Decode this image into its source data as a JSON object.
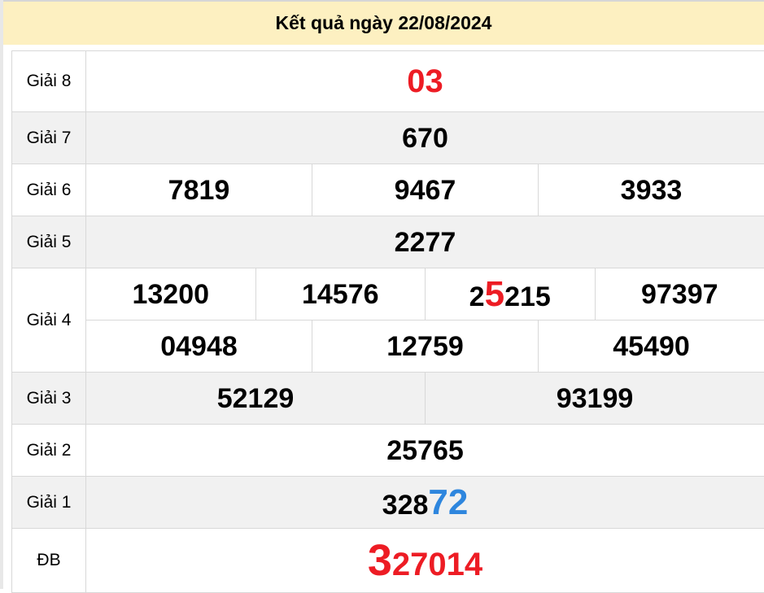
{
  "header": {
    "title": "Kết quả ngày 22/08/2024",
    "bg_color": "#fdf0c1"
  },
  "colors": {
    "red": "#ed1c24",
    "blue": "#2e86de",
    "row_gray": "#f1f1f1",
    "row_white": "#ffffff",
    "border": "#d8d8d8"
  },
  "table": {
    "rows": [
      {
        "name": "giai-8",
        "label": "Giải 8",
        "shade": "white",
        "size": "large",
        "lines": [
          [
            [
              {
                "text": "03",
                "color": "red"
              }
            ]
          ]
        ]
      },
      {
        "name": "giai-7",
        "label": "Giải 7",
        "shade": "gray",
        "size": "normal",
        "lines": [
          [
            [
              {
                "text": "670",
                "color": "black"
              }
            ]
          ]
        ]
      },
      {
        "name": "giai-6",
        "label": "Giải 6",
        "shade": "white",
        "size": "normal",
        "lines": [
          [
            [
              {
                "text": "7819",
                "color": "black"
              }
            ],
            [
              {
                "text": "9467",
                "color": "black"
              }
            ],
            [
              {
                "text": "3933",
                "color": "black"
              }
            ]
          ]
        ]
      },
      {
        "name": "giai-5",
        "label": "Giải 5",
        "shade": "gray",
        "size": "normal",
        "lines": [
          [
            [
              {
                "text": "2277",
                "color": "black"
              }
            ]
          ]
        ]
      },
      {
        "name": "giai-4",
        "label": "Giải 4",
        "shade": "white",
        "size": "normal",
        "lines": [
          [
            [
              {
                "text": "13200",
                "color": "black"
              }
            ],
            [
              {
                "text": "14576",
                "color": "black"
              }
            ],
            [
              {
                "text": "2",
                "color": "black"
              },
              {
                "text": "5",
                "color": "red",
                "emph": true
              },
              {
                "text": "215",
                "color": "black"
              }
            ],
            [
              {
                "text": "97397",
                "color": "black"
              }
            ]
          ],
          [
            [
              {
                "text": "04948",
                "color": "black"
              }
            ],
            [
              {
                "text": "12759",
                "color": "black"
              }
            ],
            [
              {
                "text": "45490",
                "color": "black"
              }
            ]
          ]
        ]
      },
      {
        "name": "giai-3",
        "label": "Giải 3",
        "shade": "gray",
        "size": "normal",
        "lines": [
          [
            [
              {
                "text": "52129",
                "color": "black"
              }
            ],
            [
              {
                "text": "93199",
                "color": "black"
              }
            ]
          ]
        ]
      },
      {
        "name": "giai-2",
        "label": "Giải 2",
        "shade": "white",
        "size": "normal",
        "lines": [
          [
            [
              {
                "text": "25765",
                "color": "black"
              }
            ]
          ]
        ]
      },
      {
        "name": "giai-1",
        "label": "Giải 1",
        "shade": "gray",
        "size": "normal",
        "lines": [
          [
            [
              {
                "text": "328",
                "color": "black"
              },
              {
                "text": "72",
                "color": "blue",
                "emph": true
              }
            ]
          ]
        ]
      },
      {
        "name": "giai-db",
        "label": "ĐB",
        "shade": "white",
        "size": "xlarge",
        "lines": [
          [
            [
              {
                "text": "3",
                "color": "red",
                "emph": true
              },
              {
                "text": "27014",
                "color": "red"
              }
            ]
          ]
        ]
      }
    ]
  }
}
